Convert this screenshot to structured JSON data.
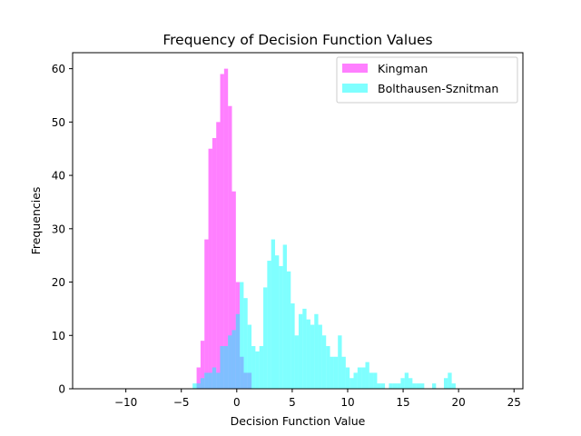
{
  "chart_data": {
    "type": "histogram",
    "title": "Frequency of Decision Function Values",
    "xlabel": "Decision Function Value",
    "ylabel": "Frequencies",
    "xlim": [
      -14.8,
      25.8
    ],
    "ylim": [
      0,
      63
    ],
    "xticks": [
      -10,
      -5,
      0,
      5,
      10,
      15,
      20,
      25
    ],
    "yticks": [
      0,
      10,
      20,
      30,
      40,
      50,
      60
    ],
    "xtick_labels": [
      "−10",
      "−5",
      "0",
      "5",
      "10",
      "15",
      "20",
      "25"
    ],
    "ytick_labels": [
      "0",
      "10",
      "20",
      "30",
      "40",
      "50",
      "60"
    ],
    "legend_position": "upper-right",
    "grid": false,
    "series": [
      {
        "name": "Kingman",
        "color": "#ff00ff",
        "alpha": 0.5,
        "bin_width": 0.354,
        "bin_start": -3.62,
        "counts": [
          4,
          9,
          28,
          45,
          47,
          50,
          59,
          60,
          53,
          37,
          20,
          6,
          3,
          3
        ]
      },
      {
        "name": "Bolthausen-Sznitman",
        "color": "#00ffff",
        "alpha": 0.5,
        "bin_width": 0.354,
        "bin_start": -3.98,
        "counts": [
          1,
          1,
          2,
          3,
          3,
          4,
          3,
          8,
          8,
          10,
          11,
          14,
          20,
          17,
          12,
          8,
          7,
          8,
          19,
          24,
          28,
          25,
          23,
          27,
          22,
          16,
          10,
          14,
          15,
          13,
          12,
          14,
          12,
          10,
          8,
          6,
          6,
          10,
          6,
          4,
          2,
          3,
          4,
          4,
          5,
          3,
          3,
          1,
          1,
          0,
          1,
          1,
          1,
          2,
          3,
          2,
          1,
          1,
          1,
          0,
          0,
          1,
          0,
          0,
          2,
          3,
          1,
          0,
          0,
          0,
          0,
          0,
          0,
          0,
          0,
          0,
          0
        ]
      }
    ]
  }
}
